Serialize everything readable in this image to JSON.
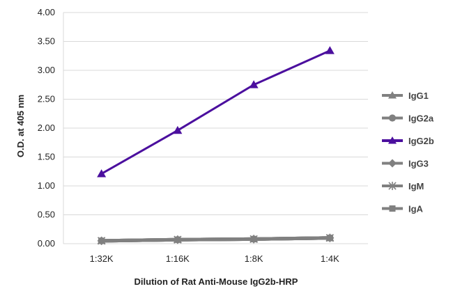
{
  "chart_data": {
    "type": "line",
    "title": "",
    "xlabel": "Dilution of Rat Anti-Mouse IgG2b-HRP",
    "ylabel": "O.D. at 405 nm",
    "categories": [
      "1:32K",
      "1:16K",
      "1:8K",
      "1:4K"
    ],
    "ylim": [
      0,
      4
    ],
    "yticks": [
      "0.00",
      "0.50",
      "1.00",
      "1.50",
      "2.00",
      "2.50",
      "3.00",
      "3.50",
      "4.00"
    ],
    "grid": "horizontal",
    "legend_position": "right",
    "series": [
      {
        "name": "IgG1",
        "marker": "triangle",
        "color": "#808080",
        "values": [
          0.05,
          0.07,
          0.08,
          0.1
        ]
      },
      {
        "name": "IgG2a",
        "marker": "circle",
        "color": "#808080",
        "values": [
          0.05,
          0.07,
          0.08,
          0.1
        ]
      },
      {
        "name": "IgG2b",
        "marker": "triangle",
        "color": "#4b0f9e",
        "values": [
          1.21,
          1.96,
          2.75,
          3.34
        ]
      },
      {
        "name": "IgG3",
        "marker": "diamond",
        "color": "#808080",
        "values": [
          0.05,
          0.07,
          0.08,
          0.1
        ]
      },
      {
        "name": "IgM",
        "marker": "star",
        "color": "#808080",
        "values": [
          0.05,
          0.07,
          0.08,
          0.1
        ]
      },
      {
        "name": "IgA",
        "marker": "square",
        "color": "#808080",
        "values": [
          0.05,
          0.07,
          0.08,
          0.1
        ]
      }
    ]
  }
}
